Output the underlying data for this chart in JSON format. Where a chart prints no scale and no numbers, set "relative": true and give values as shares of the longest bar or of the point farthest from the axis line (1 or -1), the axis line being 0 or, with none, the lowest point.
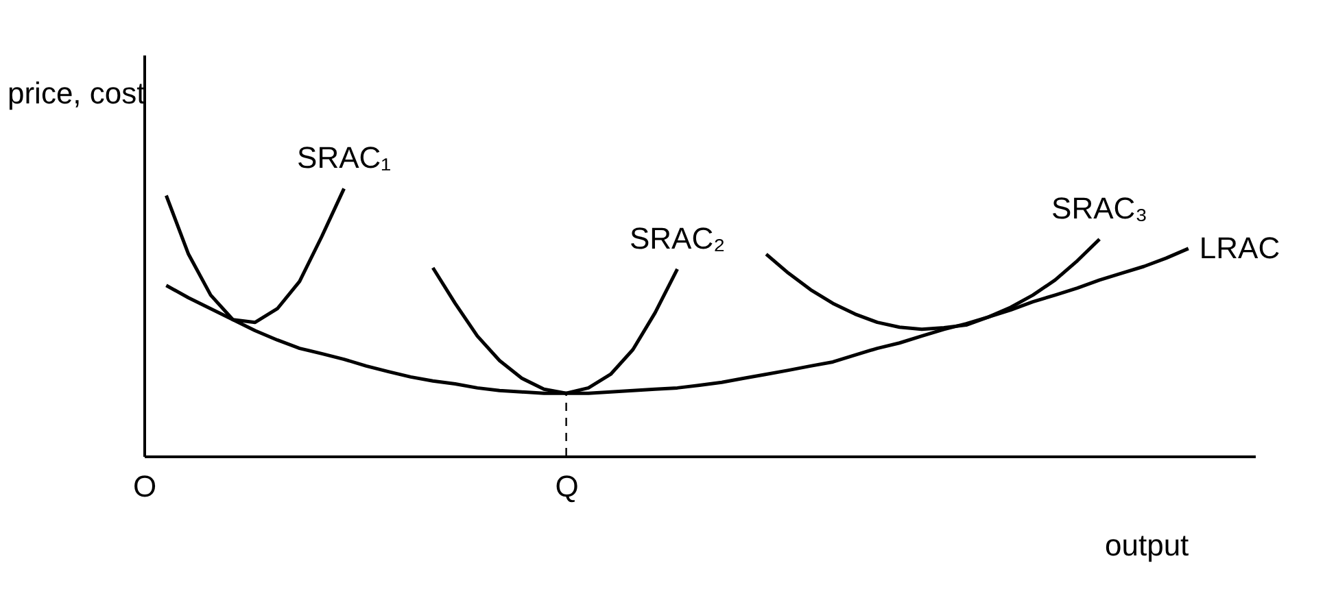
{
  "chart_data": {
    "type": "line",
    "relative": true,
    "xlabel": "output",
    "ylabel": "price, cost",
    "categories": [
      "O",
      null,
      null,
      null,
      null,
      null,
      null,
      null,
      null,
      null,
      null,
      null,
      null,
      null,
      null,
      null,
      null,
      null,
      null,
      "Q",
      null,
      null,
      null,
      null,
      null,
      null,
      null,
      null,
      null,
      null,
      null,
      null,
      null,
      null,
      null,
      null,
      null,
      null,
      null,
      null,
      null,
      null,
      null,
      null,
      null,
      null,
      null,
      null,
      null,
      null,
      null
    ],
    "tick_labels": "x",
    "series": [
      {
        "name": "LRAC",
        "color": "#000000",
        "values": [
          null,
          0.638,
          0.592,
          0.551,
          0.51,
          0.469,
          0.434,
          0.403,
          0.383,
          0.362,
          0.337,
          0.316,
          0.296,
          0.281,
          0.27,
          0.255,
          0.245,
          0.24,
          0.235,
          0.235,
          0.235,
          0.24,
          0.245,
          0.25,
          0.255,
          0.265,
          0.276,
          0.291,
          0.306,
          0.321,
          0.337,
          0.352,
          0.378,
          0.403,
          0.423,
          0.449,
          0.474,
          0.495,
          0.52,
          0.546,
          0.577,
          0.602,
          0.628,
          0.658,
          0.684,
          0.709,
          0.74,
          0.776,
          null,
          null,
          null
        ]
      },
      {
        "name": "SRAC₁",
        "color": "#000000",
        "values": [
          null,
          0.974,
          0.755,
          0.602,
          0.51,
          0.5,
          0.551,
          0.653,
          0.821,
          1.0,
          null,
          null,
          null,
          null,
          null,
          null,
          null,
          null,
          null,
          null,
          null,
          null,
          null,
          null,
          null,
          null,
          null,
          null,
          null,
          null,
          null,
          null,
          null,
          null,
          null,
          null,
          null,
          null,
          null,
          null,
          null,
          null,
          null,
          null,
          null,
          null,
          null,
          null,
          null,
          null,
          null
        ]
      },
      {
        "name": "SRAC₂",
        "color": "#000000",
        "values": [
          null,
          null,
          null,
          null,
          null,
          null,
          null,
          null,
          null,
          null,
          null,
          null,
          null,
          0.704,
          0.571,
          0.449,
          0.357,
          0.291,
          0.25,
          0.235,
          0.255,
          0.306,
          0.398,
          0.536,
          0.699,
          null,
          null,
          null,
          null,
          null,
          null,
          null,
          null,
          null,
          null,
          null,
          null,
          null,
          null,
          null,
          null,
          null,
          null,
          null,
          null,
          null,
          null,
          null,
          null,
          null,
          null
        ]
      },
      {
        "name": "SRAC₃",
        "color": "#000000",
        "values": [
          null,
          null,
          null,
          null,
          null,
          null,
          null,
          null,
          null,
          null,
          null,
          null,
          null,
          null,
          null,
          null,
          null,
          null,
          null,
          null,
          null,
          null,
          null,
          null,
          null,
          null,
          null,
          null,
          0.755,
          0.684,
          0.622,
          0.571,
          0.531,
          0.5,
          0.482,
          0.474,
          0.48,
          0.49,
          0.52,
          0.556,
          0.602,
          0.658,
          0.73,
          0.811,
          null,
          null,
          null,
          null,
          null,
          null,
          null
        ]
      }
    ],
    "ref_lines": [
      {
        "axis": "x",
        "value": "Q",
        "line_style": "dashed",
        "color": "#000000"
      }
    ],
    "legend": false,
    "grid": false,
    "marker": "none",
    "line_style": "solid"
  }
}
